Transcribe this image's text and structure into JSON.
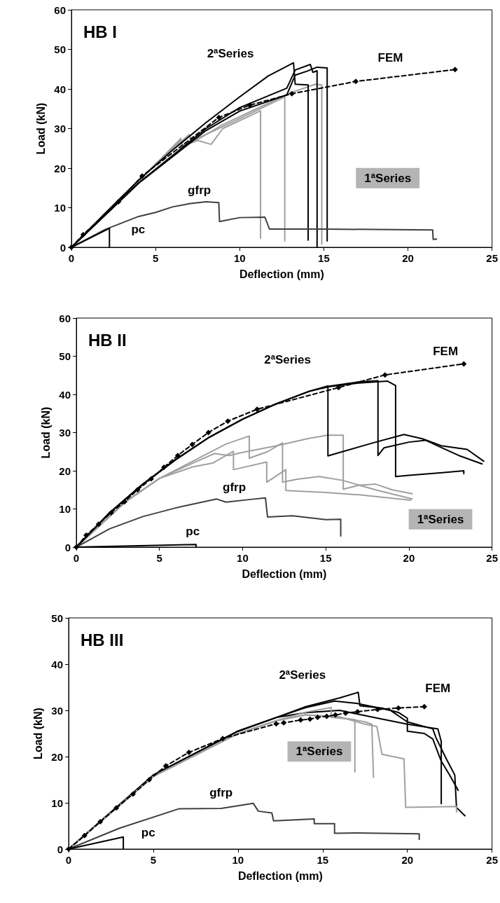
{
  "chart_data": [
    {
      "type": "line",
      "title": "HB I",
      "xlabel": "Deflection (mm)",
      "ylabel": "Load (kN)",
      "xlim": [
        0,
        25
      ],
      "ylim": [
        0,
        60
      ],
      "xticks": [
        0,
        5,
        10,
        15,
        20,
        25
      ],
      "yticks": [
        0,
        10,
        20,
        30,
        40,
        50,
        60
      ],
      "grid": false,
      "marker": "none",
      "line_style": "solid",
      "annotations": [
        "2ªSeries",
        "FEM",
        "1ªSeries",
        "gfrp",
        "pc"
      ],
      "series": [
        {
          "color": "#a0a0a0",
          "x": [
            0,
            3,
            5,
            6.5,
            6.6,
            7.5,
            8.3,
            9,
            10.5,
            11.24,
            11.24
          ],
          "values": [
            0,
            12.5,
            21,
            27,
            25.5,
            27,
            26,
            30,
            33,
            34.5,
            2.3
          ]
        },
        {
          "color": "#a0a0a0",
          "x": [
            0,
            3,
            5,
            6.5,
            6.6,
            8.5,
            10,
            12.68,
            12.68
          ],
          "values": [
            0,
            12.5,
            21,
            27.5,
            25.8,
            29.5,
            32.5,
            38,
            1.6
          ]
        },
        {
          "color": "#a0a0a0",
          "x": [
            0,
            3,
            5,
            7,
            7.2,
            9,
            11,
            13,
            14.5,
            14.88,
            14.88
          ],
          "values": [
            0,
            12.5,
            21,
            28.5,
            26.5,
            31,
            35,
            39,
            41.2,
            41,
            0.8
          ]
        },
        {
          "color": "#000000",
          "x": [
            0,
            2,
            4,
            6,
            8,
            10,
            11.7,
            13.2,
            13.3,
            14.07,
            14.07
          ],
          "values": [
            0,
            8.6,
            17,
            24.5,
            31.5,
            38,
            43.3,
            46.6,
            41.2,
            41,
            1.8
          ]
        },
        {
          "color": "#000000",
          "x": [
            0,
            4,
            8,
            10,
            12.8,
            13.3,
            14.2,
            14.35,
            14.6,
            14.6
          ],
          "values": [
            0,
            16.3,
            30,
            35.3,
            40.2,
            44.8,
            46.2,
            44.2,
            44.6,
            0
          ]
        },
        {
          "color": "#000000",
          "x": [
            0,
            4,
            8,
            10,
            12.8,
            13.3,
            14,
            14.6,
            15.2,
            15.2
          ],
          "values": [
            0,
            16.2,
            29.5,
            34.4,
            38.5,
            43.5,
            44.5,
            45.5,
            45.3,
            1.6
          ]
        },
        {
          "color": "#404040",
          "x": [
            0,
            2,
            4,
            5,
            6,
            7,
            8,
            8.76,
            8.8,
            10,
            11.5,
            11.77,
            15,
            18,
            21.47,
            21.5,
            21.7
          ],
          "values": [
            0,
            4.5,
            7.8,
            8.8,
            10.2,
            11,
            11.5,
            11.3,
            6.5,
            7.5,
            7.6,
            4.6,
            4.6,
            4.5,
            4.4,
            2,
            2.1
          ]
        },
        {
          "color": "#000000",
          "x": [
            0,
            2.26,
            2.26
          ],
          "values": [
            0,
            4.8,
            0
          ]
        },
        {
          "color": "#000000",
          "marker": "diamond",
          "line_style": "dashed",
          "x": [
            0,
            0.7,
            2.8,
            4.2,
            8.76,
            10.6,
            13.1,
            16.9,
            22.8
          ],
          "values": [
            0,
            3.2,
            11.5,
            18,
            32.8,
            35.9,
            38.8,
            41.9,
            44.9
          ]
        }
      ]
    },
    {
      "type": "line",
      "title": "HB II",
      "xlabel": "Deflection (mm)",
      "ylabel": "Load (kN)",
      "xlim": [
        0,
        25
      ],
      "ylim": [
        0,
        60
      ],
      "xticks": [
        0,
        5,
        10,
        15,
        20,
        25
      ],
      "yticks": [
        0,
        10,
        20,
        30,
        40,
        50,
        60
      ],
      "grid": false,
      "marker": "none",
      "line_style": "solid",
      "annotations": [
        "2ªSeries",
        "FEM",
        "1ªSeries",
        "gfrp",
        "pc"
      ],
      "series": [
        {
          "color": "#a0a0a0",
          "x": [
            0,
            3,
            5,
            7,
            8.3,
            9.2,
            10,
            12,
            14,
            15.1,
            16.05,
            16.05,
            17,
            18,
            19,
            20.2
          ],
          "values": [
            0,
            12,
            18,
            22,
            24.5,
            24,
            24.8,
            26.5,
            28.5,
            29.3,
            29.3,
            15.2,
            16.2,
            16.5,
            15,
            14
          ]
        },
        {
          "color": "#a0a0a0",
          "x": [
            0,
            3,
            5,
            7,
            9,
            10.4,
            10.4,
            11.5,
            12.4,
            12.4,
            13.3,
            14.6,
            16,
            18,
            20.2
          ],
          "values": [
            0,
            12,
            18,
            22.5,
            27,
            29.1,
            23.3,
            25,
            27.3,
            17,
            17.8,
            18.5,
            17.5,
            15,
            12.6
          ]
        },
        {
          "color": "#a0a0a0",
          "x": [
            0,
            3,
            5,
            7,
            8.2,
            9.45,
            9.45,
            11.45,
            11.45,
            12.6,
            12.6,
            15,
            17,
            20.1
          ],
          "values": [
            0,
            12,
            18,
            21,
            22,
            25.1,
            20.3,
            22.3,
            17,
            20.3,
            14.8,
            14.3,
            13.7,
            12.3
          ]
        },
        {
          "color": "#000000",
          "x": [
            0,
            2,
            4,
            6,
            8,
            10,
            12,
            14,
            15.13,
            15.13,
            16,
            18,
            19.7,
            20.8,
            22,
            23.5,
            24.5
          ],
          "values": [
            0,
            9,
            16.5,
            23,
            28.8,
            33.5,
            37.5,
            40.8,
            42.2,
            23.9,
            25,
            27.5,
            29.5,
            28.4,
            26.5,
            25.6,
            22.5
          ]
        },
        {
          "color": "#000000",
          "x": [
            0,
            2,
            4,
            6,
            8,
            10,
            12,
            14,
            15,
            17,
            18.14,
            18.14,
            18.5,
            20,
            21,
            22,
            23,
            24.4
          ],
          "values": [
            0,
            9,
            16.5,
            23,
            28.8,
            33.5,
            37.5,
            40.8,
            42,
            43.3,
            43.6,
            24,
            26,
            27.5,
            28,
            26,
            24,
            21.8
          ]
        },
        {
          "color": "#000000",
          "x": [
            0,
            2,
            4,
            6,
            8,
            10,
            12,
            14,
            15.2,
            17,
            18.7,
            19.2,
            19.2,
            20,
            22,
            23.3,
            23.3
          ],
          "values": [
            0,
            9,
            16.5,
            23,
            28.8,
            33.5,
            37.5,
            40.8,
            42,
            43,
            43.5,
            42.3,
            18.5,
            18.8,
            19.5,
            20,
            19.2
          ]
        },
        {
          "color": "#404040",
          "x": [
            0,
            2,
            4,
            6,
            8.44,
            9,
            10.5,
            11.37,
            11.5,
            13,
            15,
            15.9,
            15.9
          ],
          "values": [
            0,
            4.8,
            8,
            10.3,
            12.6,
            11.8,
            12.5,
            12.9,
            7.9,
            8.2,
            7.2,
            7.3,
            2.9
          ]
        },
        {
          "color": "#000000",
          "x": [
            0,
            7.2,
            7.2
          ],
          "values": [
            0,
            0.7,
            0
          ]
        },
        {
          "color": "#000000",
          "marker": "diamond",
          "line_style": "dashed",
          "x": [
            0,
            0.59,
            1.34,
            2.09,
            2.9,
            3.68,
            4.5,
            5.27,
            6.1,
            6.97,
            7.94,
            9.11,
            10.87,
            15.77,
            18.56,
            23.3
          ],
          "values": [
            0,
            3.1,
            6,
            9,
            11.9,
            15,
            17.9,
            20.9,
            24,
            26.9,
            30,
            33,
            36.1,
            41.8,
            45.1,
            48
          ]
        }
      ]
    },
    {
      "type": "line",
      "title": "HB III",
      "xlabel": "Deflection (mm)",
      "ylabel": "Load (kN)",
      "xlim": [
        0,
        25
      ],
      "ylim": [
        0,
        50
      ],
      "xticks": [
        0,
        5,
        10,
        15,
        20,
        25
      ],
      "yticks": [
        0,
        10,
        20,
        30,
        40,
        50
      ],
      "grid": false,
      "marker": "none",
      "line_style": "solid",
      "annotations": [
        "2ªSeries",
        "FEM",
        "1ªSeries",
        "gfrp",
        "pc"
      ],
      "series": [
        {
          "color": "#000000",
          "x": [
            0,
            5,
            10,
            12.3,
            14,
            16,
            17.1,
            17.2,
            18.5,
            19.5,
            20,
            20,
            21,
            21.5,
            22,
            22.5,
            23
          ],
          "values": [
            0,
            16,
            25.5,
            28.5,
            30.8,
            32.7,
            33.9,
            31,
            30.5,
            29.5,
            28.3,
            25.5,
            25,
            23.8,
            19,
            16,
            12.7
          ]
        },
        {
          "color": "#000000",
          "x": [
            0,
            5,
            10,
            12.3,
            14,
            15.7,
            17,
            19,
            20,
            21.5,
            21.7,
            22.3,
            22.8,
            22.9,
            23.4
          ],
          "values": [
            0,
            16,
            25.5,
            28.5,
            30.6,
            32,
            31.5,
            30,
            27.5,
            26,
            24,
            19.5,
            16,
            9,
            7.2
          ]
        },
        {
          "color": "#000000",
          "x": [
            0,
            5,
            10,
            12.3,
            14,
            16,
            18,
            20,
            21.8,
            22,
            22
          ],
          "values": [
            0,
            16,
            25.5,
            28.5,
            29.5,
            30,
            28.5,
            27,
            26,
            23.3,
            9.8
          ]
        },
        {
          "color": "#a0a0a0",
          "x": [
            0,
            5,
            10,
            12.3,
            14,
            15.5,
            15.5,
            16.9,
            16.9
          ],
          "values": [
            0,
            15.7,
            25,
            27.8,
            29.6,
            30.6,
            28.5,
            28,
            16.7
          ]
        },
        {
          "color": "#a0a0a0",
          "x": [
            0,
            5,
            10,
            12.3,
            14,
            16,
            17.5,
            17.9,
            18
          ],
          "values": [
            0,
            15.7,
            25,
            27.8,
            29,
            28.5,
            27.5,
            27,
            15.5
          ]
        },
        {
          "color": "#a0a0a0",
          "x": [
            0,
            5,
            10,
            12.3,
            14,
            16,
            17.5,
            18.2,
            18.5,
            19.8,
            19.9,
            22.9,
            22.9
          ],
          "values": [
            0,
            15.7,
            25,
            27.8,
            29,
            28.6,
            27,
            26.5,
            20.5,
            19.5,
            9,
            9.2,
            8
          ]
        },
        {
          "color": "#404040",
          "x": [
            0,
            3,
            6.5,
            9,
            10.9,
            11.2,
            12,
            12.1,
            14.5,
            14.5,
            15.7,
            15.7,
            17,
            20.7,
            20.7
          ],
          "values": [
            0,
            4.5,
            8.7,
            8.8,
            9.9,
            8.2,
            7.8,
            6.1,
            6.5,
            5.5,
            5.5,
            3.4,
            3.5,
            3.3,
            2.1
          ]
        },
        {
          "color": "#000000",
          "x": [
            0,
            3.23,
            3.23
          ],
          "values": [
            0,
            2.6,
            0
          ]
        },
        {
          "color": "#000000",
          "marker": "diamond",
          "line_style": "dashed",
          "x": [
            0,
            0.94,
            1.87,
            2.82,
            3.8,
            4.76,
            5.74,
            7.1,
            9.1,
            12.25,
            12.7,
            13.7,
            14.25,
            14.7,
            15.24,
            15.75,
            16.35,
            17.06,
            18.24,
            19.47,
            21
          ],
          "values": [
            0,
            2.9,
            5.9,
            8.9,
            11.9,
            15,
            18,
            20.9,
            23.9,
            27.1,
            27.3,
            27.9,
            28.1,
            28.5,
            28.7,
            29,
            29.4,
            29.7,
            30.2,
            30.5,
            30.8
          ]
        }
      ]
    }
  ]
}
